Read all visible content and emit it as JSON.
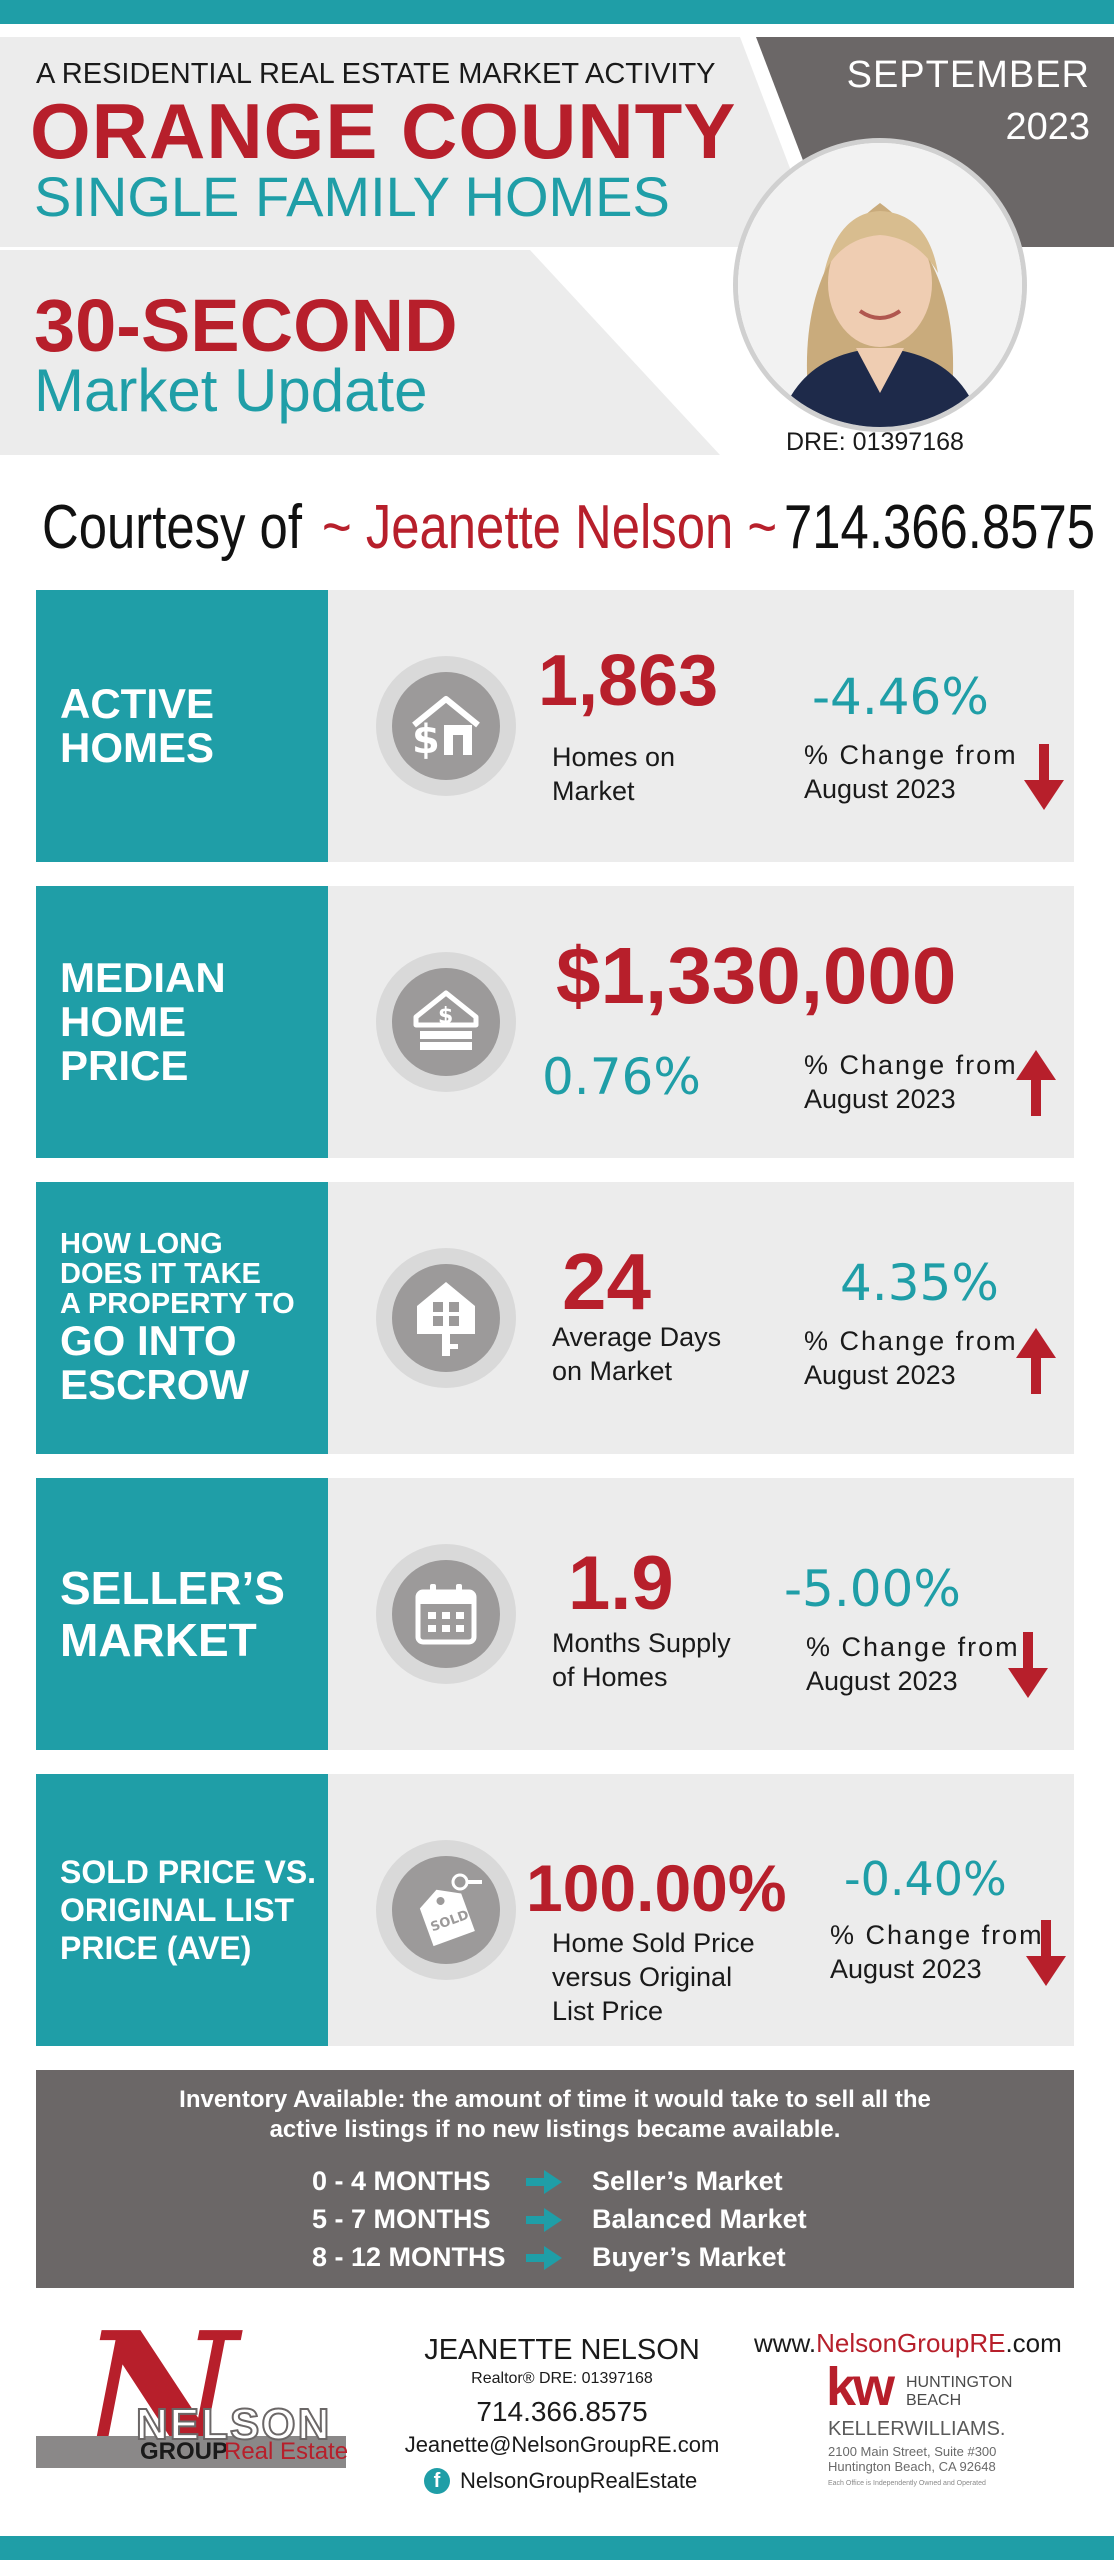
{
  "header": {
    "kicker": "A RESIDENTIAL REAL ESTATE MARKET ACTIVITY",
    "county": "ORANGE COUNTY",
    "subtitle": "SINGLE FAMILY HOMES",
    "update_line1": "30-SECOND",
    "update_line2": "Market Update",
    "month": "SEPTEMBER",
    "year": "2023",
    "dre": "DRE: 01397168"
  },
  "courtesy": {
    "prefix": "Courtesy of",
    "name": "~ Jeanette Nelson ~",
    "phone": "714.366.8575"
  },
  "rows": [
    {
      "label_lines": [
        "ACTIVE",
        "HOMES"
      ],
      "icon": "house-dollar-icon",
      "value": "1,863",
      "desc_lines": [
        "Homes on",
        "Market"
      ],
      "change": "-4.46%",
      "change_label_lines": [
        "% Change from",
        "August 2023"
      ],
      "direction": "down"
    },
    {
      "label_lines": [
        "MEDIAN",
        "HOME",
        "PRICE"
      ],
      "icon": "house-money-icon",
      "value": "$1,330,000",
      "change": "0.76%",
      "change_label_lines": [
        "% Change from",
        "August 2023"
      ],
      "direction": "up"
    },
    {
      "label_small_lines": [
        "HOW LONG",
        "DOES IT TAKE",
        "A PROPERTY TO"
      ],
      "label_lines": [
        "GO INTO",
        "ESCROW"
      ],
      "icon": "house-key-icon",
      "value": "24",
      "desc_lines": [
        "Average Days",
        "on Market"
      ],
      "change": "4.35%",
      "change_label_lines": [
        "% Change from",
        "August 2023"
      ],
      "direction": "up"
    },
    {
      "label_lines": [
        "SELLER’S",
        "MARKET"
      ],
      "icon": "calendar-icon",
      "value": "1.9",
      "desc_lines": [
        "Months Supply",
        "of Homes"
      ],
      "change": "-5.00%",
      "change_label_lines": [
        "% Change from",
        "August 2023"
      ],
      "direction": "down"
    },
    {
      "label_lines": [
        "SOLD PRICE VS.",
        "ORIGINAL LIST",
        "PRICE (AVE)"
      ],
      "icon": "sold-tag-icon",
      "value": "100.00%",
      "desc_lines": [
        "Home Sold Price",
        "versus Original",
        "List Price"
      ],
      "change": "-0.40%",
      "change_label_lines": [
        "% Change from",
        "August 2023"
      ],
      "direction": "down"
    }
  ],
  "inventory": {
    "line1": "Inventory Available:  the amount of time it would take to sell all the",
    "line2": "active listings if no new listings became available.",
    "items": [
      {
        "range": "0 - 4 MONTHS",
        "market": "Seller’s Market"
      },
      {
        "range": "5 - 7 MONTHS",
        "market": "Balanced Market"
      },
      {
        "range": "8 - 12 MONTHS",
        "market": "Buyer’s Market"
      }
    ]
  },
  "footer": {
    "logo_letter": "N",
    "logo_nelson": "NELSON",
    "logo_group": "GROUP",
    "logo_real_estate": "Real Estate",
    "agent_name": "JEANETTE NELSON",
    "agent_title": "Realtor®  DRE: 01397168",
    "phone": "714.366.8575",
    "email": "Jeanette@NelsonGroupRE.com",
    "facebook": "NelsonGroupRealEstate",
    "web_prefix": "www.",
    "web_domain": "NelsonGroupRE",
    "web_suffix": ".com",
    "kw_mark": "kw",
    "kw_city1": "HUNTINGTON",
    "kw_city2": "BEACH",
    "kw_brand": "KELLERWILLIAMS.",
    "kw_addr1": "2100 Main Street, Suite #300",
    "kw_addr2": "Huntington Beach, CA 92648",
    "kw_note": "Each Office is Independently Owned and Operated"
  },
  "colors": {
    "teal": "#1f9ea7",
    "red": "#b71f2b",
    "gray": "#6b6767"
  }
}
